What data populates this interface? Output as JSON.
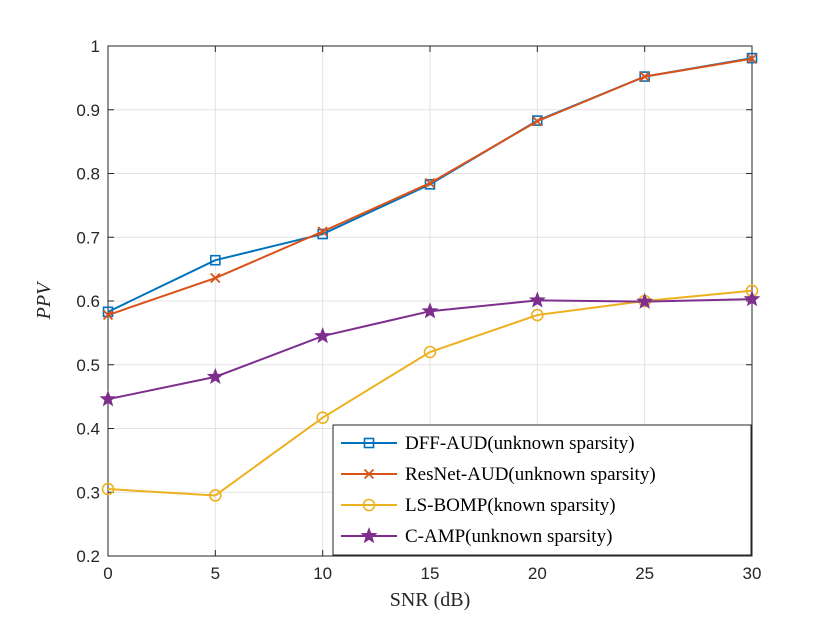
{
  "chart_data": {
    "type": "line",
    "title": "",
    "xlabel": "SNR (dB)",
    "ylabel": "PPV",
    "x": [
      0,
      5,
      10,
      15,
      20,
      25,
      30
    ],
    "xlim": [
      0,
      30
    ],
    "ylim": [
      0.2,
      1
    ],
    "xticks": [
      "0",
      "5",
      "10",
      "15",
      "20",
      "25",
      "30"
    ],
    "yticks": [
      "0.2",
      "0.3",
      "0.4",
      "0.5",
      "0.6",
      "0.7",
      "0.8",
      "0.9",
      "1"
    ],
    "grid": true,
    "legend_position": "bottom-right",
    "series": [
      {
        "name": "DFF-AUD(unknown sparsity)",
        "color": "#0072BD",
        "marker": "square",
        "values": [
          0.583,
          0.664,
          0.705,
          0.783,
          0.883,
          0.952,
          0.981
        ]
      },
      {
        "name": "ResNet-AUD(unknown sparsity)",
        "color": "#D95319",
        "marker": "x",
        "values": [
          0.578,
          0.636,
          0.709,
          0.785,
          0.882,
          0.952,
          0.98
        ]
      },
      {
        "name": "LS-BOMP(known sparsity)",
        "color": "#EDB120",
        "marker": "circle",
        "values": [
          0.305,
          0.295,
          0.417,
          0.52,
          0.578,
          0.6,
          0.616
        ]
      },
      {
        "name": "C-AMP(unknown sparsity)",
        "color": "#7E2F8E",
        "marker": "star",
        "values": [
          0.446,
          0.481,
          0.545,
          0.584,
          0.601,
          0.599,
          0.603
        ]
      }
    ]
  }
}
